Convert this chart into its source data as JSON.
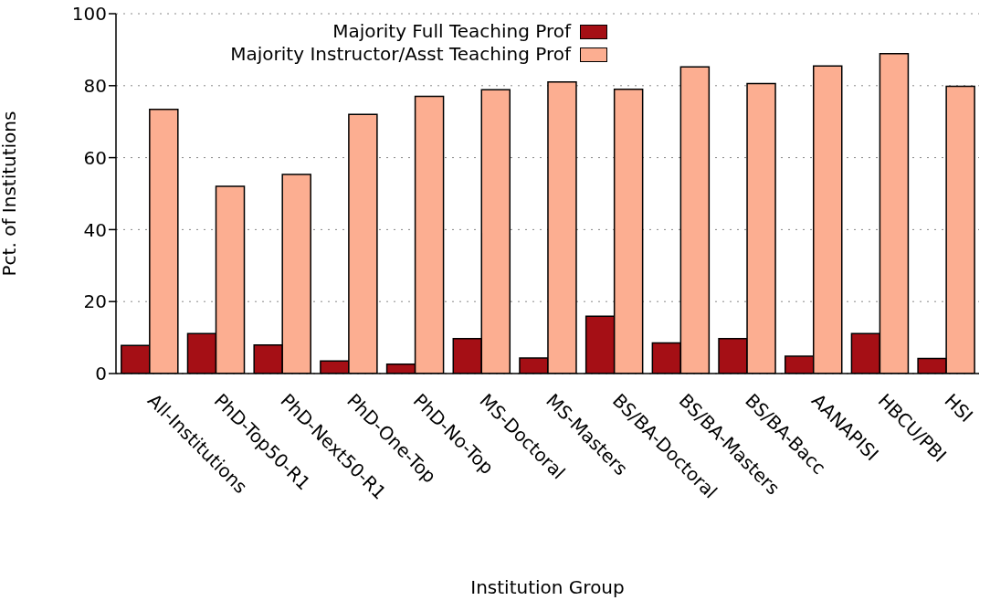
{
  "chart_data": {
    "type": "bar",
    "xlabel": "Institution Group",
    "ylabel": "Pct. of Institutions",
    "categories": [
      "All-Institutions",
      "PhD-Top50-R1",
      "PhD-Next50-R1",
      "PhD-One-Top",
      "PhD-No-Top",
      "MS-Doctoral",
      "MS-Masters",
      "BS/BA-Doctoral",
      "BS/BA-Masters",
      "BS/BA-Bacc",
      "AANAPISI",
      "HBCU/PBI",
      "HSI"
    ],
    "series": [
      {
        "name": "Majority Full Teaching Prof",
        "color": "#a50f15",
        "values": [
          7.8,
          11.1,
          7.9,
          3.5,
          2.6,
          9.7,
          4.3,
          15.9,
          8.5,
          9.7,
          4.8,
          11.1,
          4.2
        ]
      },
      {
        "name": "Majority Instructor/Asst Teaching Prof",
        "color": "#fcae91",
        "values": [
          73.4,
          52,
          55.3,
          72,
          77,
          78.9,
          81,
          79,
          85.2,
          80.6,
          85.5,
          88.9,
          79.8
        ]
      }
    ],
    "ylim": [
      0,
      100
    ],
    "yticks": [
      0,
      20,
      40,
      60,
      80,
      100
    ],
    "grid": "y",
    "legend": "top"
  }
}
